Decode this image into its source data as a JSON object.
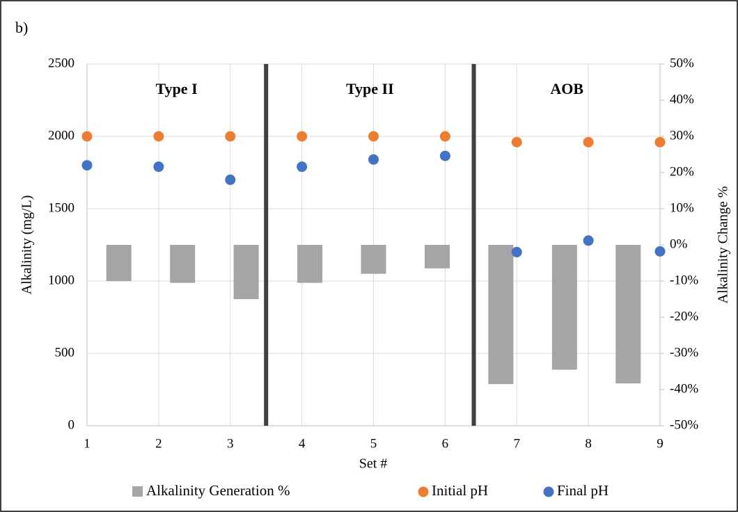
{
  "chart_data": {
    "type": "scatter",
    "panel_label": "b)",
    "x_label": "Set #",
    "y_label": "Alkalinity (mg/L)",
    "y2_label": "Alkalinity Change %",
    "x": [
      1,
      2,
      3,
      4,
      5,
      6,
      7,
      8,
      9
    ],
    "xlim": [
      1,
      9
    ],
    "xticks": [
      1,
      2,
      3,
      4,
      5,
      6,
      7,
      8,
      9
    ],
    "ylim": [
      0,
      2500
    ],
    "yticks": [
      0,
      500,
      1000,
      1500,
      2000,
      2500
    ],
    "y2lim": [
      -50,
      50
    ],
    "y2ticks": [
      {
        "value": -50,
        "label": "-50%"
      },
      {
        "value": -40,
        "label": "-40%"
      },
      {
        "value": -30,
        "label": "-30%"
      },
      {
        "value": -20,
        "label": "-20%"
      },
      {
        "value": -10,
        "label": "-10%"
      },
      {
        "value": 0,
        "label": "0%"
      },
      {
        "value": 10,
        "label": "10%"
      },
      {
        "value": 20,
        "label": "20%"
      },
      {
        "value": 30,
        "label": "30%"
      },
      {
        "value": 40,
        "label": "40%"
      },
      {
        "value": 50,
        "label": "50%"
      }
    ],
    "grid": true,
    "legend": "bottom",
    "dividers": [
      3.5,
      6.4
    ],
    "groups": [
      "Type I",
      "Type II",
      "AOB"
    ],
    "series": [
      {
        "name": "Alkalinity Generation %",
        "type": "bar",
        "axis": "y2",
        "color": "#a5a5a5",
        "values": [
          -10,
          -10.5,
          -15,
          -10.5,
          -8,
          -6.5,
          -38.5,
          -34.5,
          -38.3
        ]
      },
      {
        "name": "Initial pH",
        "type": "scatter",
        "color": "#ed7d31",
        "values": [
          2000,
          2000,
          2000,
          2000,
          2000,
          2000,
          1960,
          1960,
          1960
        ]
      },
      {
        "name": "Final pH",
        "type": "scatter",
        "color": "#4472c4",
        "values": [
          1800,
          1790,
          1700,
          1790,
          1840,
          1865,
          1200,
          1280,
          1205
        ]
      }
    ]
  }
}
